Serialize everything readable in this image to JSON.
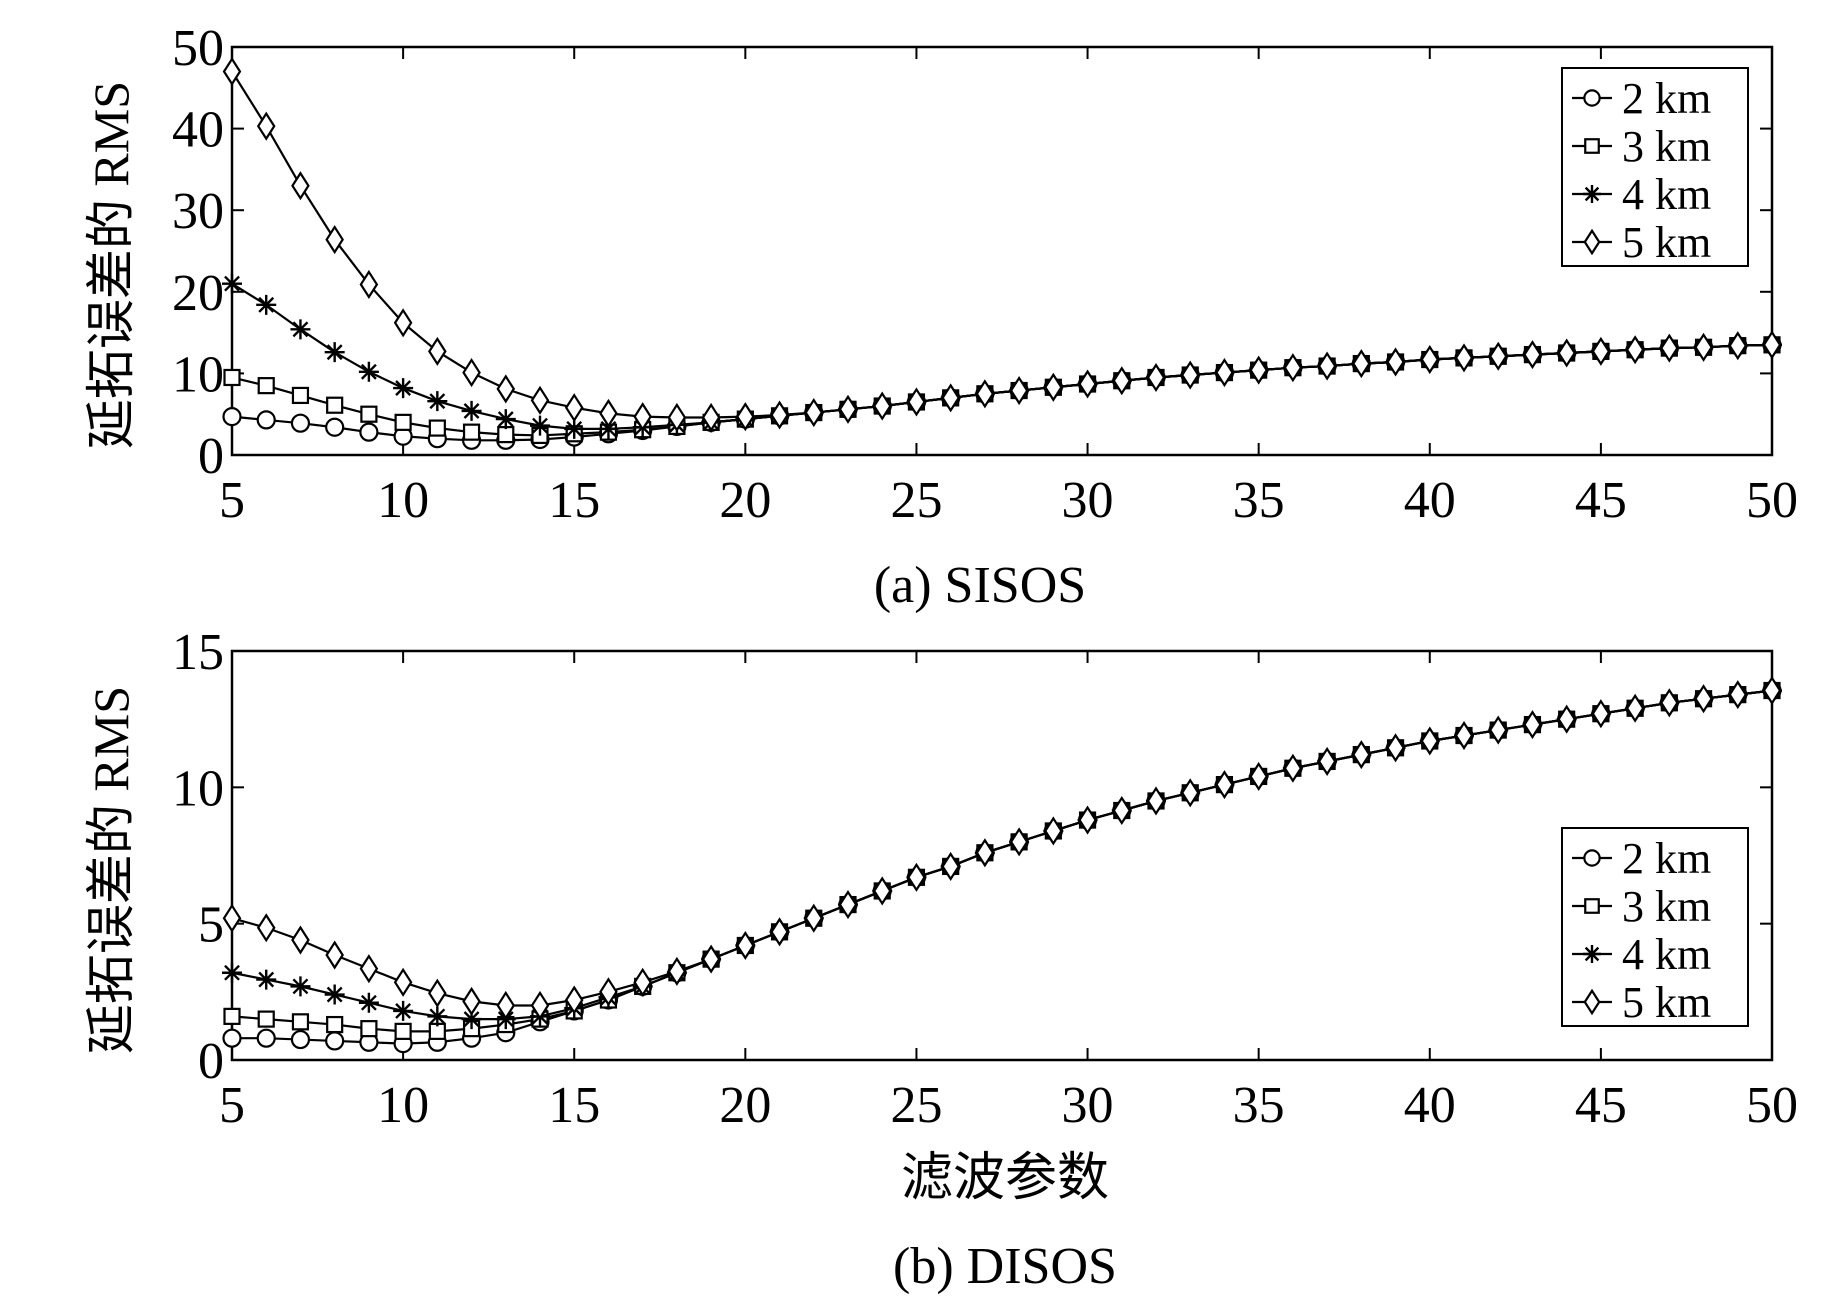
{
  "figure": {
    "panels": [
      {
        "caption": "(a) SISOS",
        "ylabel": "延拓误差的 RMS",
        "xlabel": ""
      },
      {
        "caption": "(b) DISOS",
        "ylabel": "延拓误差的 RMS",
        "xlabel": "滤波参数"
      }
    ]
  },
  "chart_data": [
    {
      "type": "line",
      "title": "(a) SISOS",
      "xlabel": "",
      "ylabel": "延拓误差的 RMS",
      "xlim": [
        5,
        50
      ],
      "ylim": [
        0,
        50
      ],
      "xticks": [
        5,
        10,
        15,
        20,
        25,
        30,
        35,
        40,
        45,
        50
      ],
      "yticks": [
        0,
        10,
        20,
        30,
        40,
        50
      ],
      "legend_position": "top-right",
      "x": [
        5,
        6,
        7,
        8,
        9,
        10,
        11,
        12,
        13,
        14,
        15,
        16,
        17,
        18,
        19,
        20,
        21,
        22,
        23,
        24,
        25,
        26,
        27,
        28,
        29,
        30,
        31,
        32,
        33,
        34,
        35,
        36,
        37,
        38,
        39,
        40,
        41,
        42,
        43,
        44,
        45,
        46,
        47,
        48,
        49,
        50
      ],
      "series": [
        {
          "name": "2 km",
          "marker": "circle",
          "values": [
            4.7,
            4.3,
            3.9,
            3.4,
            2.8,
            2.3,
            2.0,
            1.8,
            1.8,
            1.9,
            2.2,
            2.6,
            3.0,
            3.5,
            4.0,
            4.4,
            4.8,
            5.2,
            5.6,
            6.0,
            6.5,
            7.0,
            7.5,
            7.9,
            8.3,
            8.7,
            9.1,
            9.5,
            9.8,
            10.1,
            10.4,
            10.7,
            10.9,
            11.2,
            11.4,
            11.7,
            11.9,
            12.1,
            12.3,
            12.5,
            12.7,
            12.9,
            13.1,
            13.2,
            13.4,
            13.5
          ]
        },
        {
          "name": "3 km",
          "marker": "square",
          "values": [
            9.5,
            8.5,
            7.3,
            6.1,
            5.0,
            4.0,
            3.3,
            2.8,
            2.5,
            2.4,
            2.6,
            2.8,
            3.1,
            3.5,
            4.0,
            4.4,
            4.8,
            5.2,
            5.6,
            6.0,
            6.5,
            7.0,
            7.5,
            7.9,
            8.3,
            8.7,
            9.1,
            9.5,
            9.8,
            10.1,
            10.4,
            10.7,
            10.9,
            11.2,
            11.4,
            11.7,
            11.9,
            12.1,
            12.3,
            12.5,
            12.7,
            12.9,
            13.1,
            13.2,
            13.4,
            13.5
          ]
        },
        {
          "name": "4 km",
          "marker": "star",
          "values": [
            21.0,
            18.4,
            15.4,
            12.6,
            10.2,
            8.2,
            6.6,
            5.4,
            4.4,
            3.6,
            3.2,
            3.2,
            3.4,
            3.7,
            4.0,
            4.4,
            4.8,
            5.2,
            5.6,
            6.0,
            6.5,
            7.0,
            7.5,
            7.9,
            8.3,
            8.7,
            9.1,
            9.5,
            9.8,
            10.1,
            10.4,
            10.7,
            10.9,
            11.2,
            11.4,
            11.7,
            11.9,
            12.1,
            12.3,
            12.5,
            12.7,
            12.9,
            13.1,
            13.2,
            13.4,
            13.5
          ]
        },
        {
          "name": "5 km",
          "marker": "diamond",
          "values": [
            47.0,
            40.3,
            33.0,
            26.4,
            20.9,
            16.2,
            12.7,
            10.1,
            8.1,
            6.7,
            5.8,
            5.1,
            4.7,
            4.6,
            4.6,
            4.7,
            4.9,
            5.2,
            5.6,
            6.0,
            6.5,
            7.0,
            7.5,
            7.9,
            8.3,
            8.7,
            9.1,
            9.5,
            9.8,
            10.1,
            10.4,
            10.7,
            10.9,
            11.2,
            11.4,
            11.7,
            11.9,
            12.1,
            12.3,
            12.5,
            12.7,
            12.9,
            13.1,
            13.2,
            13.4,
            13.5
          ]
        }
      ]
    },
    {
      "type": "line",
      "title": "(b) DISOS",
      "xlabel": "滤波参数",
      "ylabel": "延拓误差的 RMS",
      "xlim": [
        5,
        50
      ],
      "ylim": [
        0,
        15
      ],
      "xticks": [
        5,
        10,
        15,
        20,
        25,
        30,
        35,
        40,
        45,
        50
      ],
      "yticks": [
        0,
        5,
        10,
        15
      ],
      "legend_position": "right",
      "x": [
        5,
        6,
        7,
        8,
        9,
        10,
        11,
        12,
        13,
        14,
        15,
        16,
        17,
        18,
        19,
        20,
        21,
        22,
        23,
        24,
        25,
        26,
        27,
        28,
        29,
        30,
        31,
        32,
        33,
        34,
        35,
        36,
        37,
        38,
        39,
        40,
        41,
        42,
        43,
        44,
        45,
        46,
        47,
        48,
        49,
        50
      ],
      "series": [
        {
          "name": "2 km",
          "marker": "circle",
          "values": [
            0.8,
            0.8,
            0.75,
            0.7,
            0.65,
            0.6,
            0.65,
            0.8,
            1.0,
            1.4,
            1.8,
            2.2,
            2.7,
            3.2,
            3.7,
            4.2,
            4.7,
            5.2,
            5.7,
            6.2,
            6.7,
            7.1,
            7.6,
            8.0,
            8.4,
            8.8,
            9.15,
            9.5,
            9.8,
            10.1,
            10.4,
            10.7,
            10.95,
            11.2,
            11.45,
            11.7,
            11.9,
            12.1,
            12.3,
            12.5,
            12.7,
            12.9,
            13.1,
            13.25,
            13.4,
            13.55
          ]
        },
        {
          "name": "3 km",
          "marker": "square",
          "values": [
            1.6,
            1.5,
            1.4,
            1.3,
            1.15,
            1.05,
            1.05,
            1.15,
            1.3,
            1.5,
            1.8,
            2.2,
            2.7,
            3.2,
            3.7,
            4.2,
            4.7,
            5.2,
            5.7,
            6.2,
            6.7,
            7.1,
            7.6,
            8.0,
            8.4,
            8.8,
            9.15,
            9.5,
            9.8,
            10.1,
            10.4,
            10.7,
            10.95,
            11.2,
            11.45,
            11.7,
            11.9,
            12.1,
            12.3,
            12.5,
            12.7,
            12.9,
            13.1,
            13.25,
            13.4,
            13.55
          ]
        },
        {
          "name": "4 km",
          "marker": "star",
          "values": [
            3.2,
            2.95,
            2.7,
            2.4,
            2.1,
            1.8,
            1.6,
            1.5,
            1.5,
            1.6,
            1.9,
            2.3,
            2.7,
            3.2,
            3.7,
            4.2,
            4.7,
            5.2,
            5.7,
            6.2,
            6.7,
            7.1,
            7.6,
            8.0,
            8.4,
            8.8,
            9.15,
            9.5,
            9.8,
            10.1,
            10.4,
            10.7,
            10.95,
            11.2,
            11.45,
            11.7,
            11.9,
            12.1,
            12.3,
            12.5,
            12.7,
            12.9,
            13.1,
            13.25,
            13.4,
            13.55
          ]
        },
        {
          "name": "5 km",
          "marker": "diamond",
          "values": [
            5.2,
            4.85,
            4.4,
            3.85,
            3.35,
            2.85,
            2.45,
            2.15,
            2.0,
            2.0,
            2.2,
            2.5,
            2.85,
            3.25,
            3.7,
            4.2,
            4.7,
            5.2,
            5.7,
            6.2,
            6.7,
            7.1,
            7.6,
            8.0,
            8.4,
            8.8,
            9.15,
            9.5,
            9.8,
            10.1,
            10.4,
            10.7,
            10.95,
            11.2,
            11.45,
            11.7,
            11.9,
            12.1,
            12.3,
            12.5,
            12.7,
            12.9,
            13.1,
            13.25,
            13.4,
            13.55
          ]
        }
      ]
    }
  ]
}
